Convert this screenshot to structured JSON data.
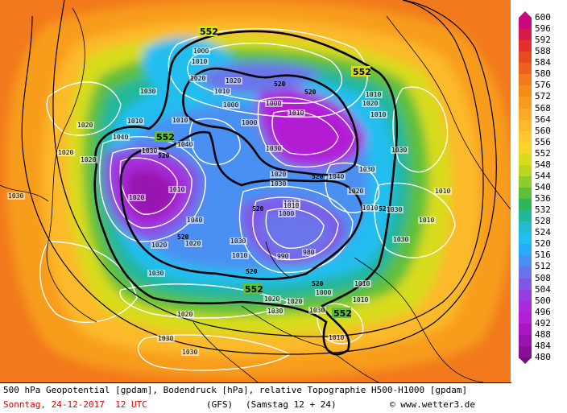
{
  "colorbar": {
    "unit": "gpdam",
    "levels": [
      600,
      596,
      592,
      588,
      584,
      580,
      576,
      572,
      568,
      564,
      560,
      556,
      552,
      548,
      544,
      540,
      536,
      532,
      528,
      524,
      520,
      516,
      512,
      508,
      504,
      500,
      496,
      492,
      488,
      484,
      480
    ],
    "colors": {
      "600": "#c8087c",
      "596": "#d61a4a",
      "592": "#e3302c",
      "588": "#ea4a23",
      "584": "#ee6020",
      "580": "#f27a1c",
      "576": "#f58c1a",
      "572": "#f89c1f",
      "568": "#fbaa26",
      "564": "#fcb92c",
      "560": "#fdc832",
      "556": "#f6d628",
      "552": "#d8dc1e",
      "548": "#b8d622",
      "544": "#8ecb2c",
      "540": "#5ec03a",
      "536": "#2eb65a",
      "532": "#22b69a",
      "528": "#22bcd0",
      "524": "#22bef0",
      "520": "#28aaf8",
      "516": "#4a90f2",
      "512": "#6a74ea",
      "508": "#8058e6",
      "504": "#943ee0",
      "500": "#a82cdc",
      "496": "#b41ed4",
      "492": "#a816c4",
      "488": "#9812b0",
      "484": "#861096",
      "480": "#700c7e"
    }
  },
  "map": {
    "contour_labels_552": [
      "552",
      "552",
      "552",
      "552",
      "552"
    ],
    "contour_labels_520": [
      "520",
      "520",
      "520",
      "520",
      "520",
      "520",
      "520",
      "520",
      "520"
    ],
    "pressure_labels": [
      "1030",
      "1020",
      "1010",
      "1000",
      "1010",
      "1000",
      "1020",
      "1010",
      "1020",
      "1010",
      "1000",
      "1040",
      "1030",
      "1020",
      "1010",
      "1040",
      "1020",
      "1030",
      "1000",
      "1010",
      "1020",
      "1030",
      "1010",
      "1040",
      "1030",
      "1020",
      "1010",
      "1030",
      "1030",
      "1010",
      "990",
      "980",
      "1000",
      "1010",
      "1020",
      "1030",
      "1030",
      "1020",
      "1010",
      "1040",
      "1030",
      "1020",
      "1010",
      "1020",
      "1030",
      "1010",
      "1020",
      "1010",
      "1020",
      "1010",
      "1030",
      "1010",
      "1000",
      "1030",
      "1020",
      "1010",
      "1030",
      "1030"
    ]
  },
  "footer": {
    "description": "500 hPa Geopotential [gpdam], Bodendruck [hPa], relative Topographie H500-H1000 [gpdam]",
    "date": "Sonntag, 24-12-2017  12 UTC",
    "model": "(GFS)",
    "run": "(Samstag 12 + 24)",
    "copyright": "© www.wetter3.de"
  }
}
